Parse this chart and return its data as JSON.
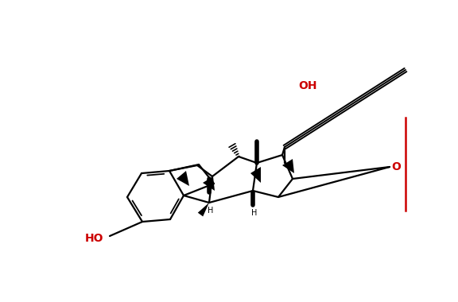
{
  "bg_color": "#ffffff",
  "black": "#000000",
  "red": "#cc0000",
  "figsize": [
    5.76,
    3.8
  ],
  "dpi": 100,
  "xlim": [
    0,
    576
  ],
  "ylim": [
    0,
    380
  ]
}
